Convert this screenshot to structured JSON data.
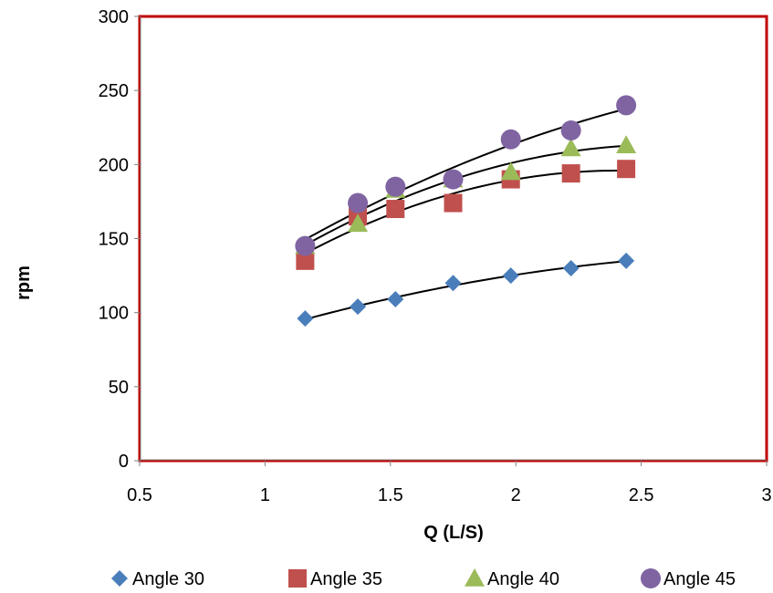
{
  "chart_data": {
    "type": "scatter",
    "title": "",
    "xlabel": "Q (L/S)",
    "ylabel": "rpm",
    "xlim": [
      0.5,
      3
    ],
    "ylim": [
      0,
      300
    ],
    "x_ticks": [
      "0.5",
      "1",
      "1.5",
      "2",
      "2.5",
      "3"
    ],
    "y_ticks": [
      "0",
      "50",
      "100",
      "150",
      "200",
      "250",
      "300"
    ],
    "grid": false,
    "legend_position": "bottom",
    "trendlines": "polynomial",
    "series": [
      {
        "name": "Angle 30",
        "marker": "diamond",
        "color": "#4a7ebb",
        "x": [
          1.16,
          1.37,
          1.52,
          1.75,
          1.98,
          2.22,
          2.44
        ],
        "y": [
          96,
          104,
          109,
          120,
          125,
          130,
          135
        ]
      },
      {
        "name": "Angle 35",
        "marker": "square",
        "color": "#c0504d",
        "x": [
          1.16,
          1.37,
          1.52,
          1.75,
          1.98,
          2.22,
          2.44
        ],
        "y": [
          135,
          165,
          170,
          174,
          190,
          194,
          197
        ]
      },
      {
        "name": "Angle 40",
        "marker": "triangle",
        "color": "#9bbb59",
        "x": [
          1.16,
          1.37,
          1.52,
          1.75,
          1.98,
          2.22,
          2.44
        ],
        "y": [
          145,
          160,
          183,
          190,
          195,
          211,
          213
        ]
      },
      {
        "name": "Angle 45",
        "marker": "circle",
        "color": "#8064a2",
        "x": [
          1.16,
          1.37,
          1.52,
          1.75,
          1.98,
          2.22,
          2.44
        ],
        "y": [
          145,
          174,
          185,
          190,
          217,
          223,
          240
        ]
      }
    ],
    "styles": {
      "frame_color": "#c00000",
      "axis_color": "#808080",
      "trendline_color": "#000000"
    }
  }
}
